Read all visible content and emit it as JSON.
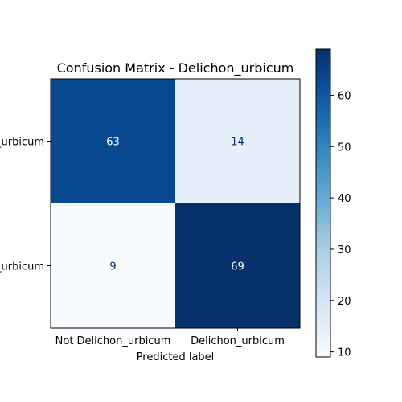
{
  "chart_data": {
    "type": "heatmap",
    "title": "Confusion Matrix - Delichon_urbicum",
    "xlabel": "Predicted label",
    "ylabel": "",
    "x_categories": [
      "Not Delichon_urbicum",
      "Delichon_urbicum"
    ],
    "y_categories": [
      "Not Delichon_urbicum",
      "Delichon_urbicum"
    ],
    "values": [
      [
        63,
        14
      ],
      [
        9,
        69
      ]
    ],
    "colormap": "Blues",
    "colorbar": {
      "range": [
        9,
        69
      ],
      "ticks": [
        10,
        20,
        30,
        40,
        50,
        60
      ]
    }
  }
}
